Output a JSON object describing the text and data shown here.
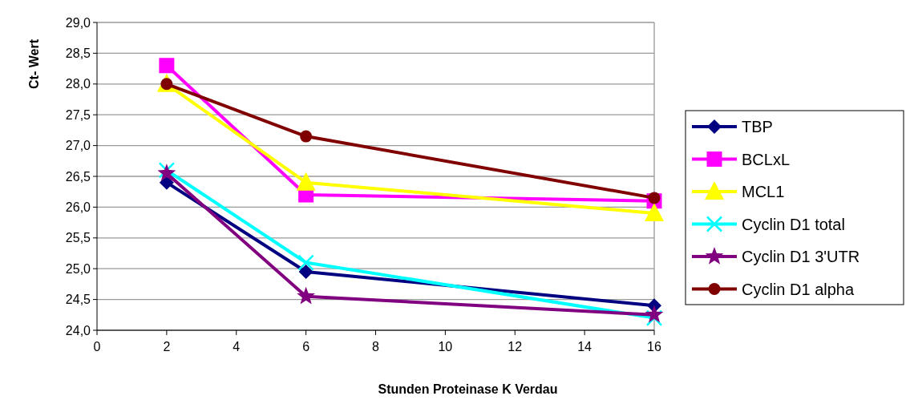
{
  "chart_data": {
    "type": "line",
    "xlabel": "Stunden Proteinase K Verdau",
    "ylabel": "Ct- Wert",
    "x": [
      2,
      6,
      16
    ],
    "xlim": [
      0,
      16
    ],
    "xticks": [
      0,
      2,
      4,
      6,
      8,
      10,
      12,
      14,
      16
    ],
    "ylim": [
      24,
      29
    ],
    "yticks": [
      {
        "value": 24,
        "label": "24,0"
      },
      {
        "value": 24.5,
        "label": "24,5"
      },
      {
        "value": 25,
        "label": "25,0"
      },
      {
        "value": 25.5,
        "label": "25,5"
      },
      {
        "value": 26,
        "label": "26,0"
      },
      {
        "value": 26.5,
        "label": "26,5"
      },
      {
        "value": 27,
        "label": "27,0"
      },
      {
        "value": 27.5,
        "label": "27,5"
      },
      {
        "value": 28,
        "label": "28,0"
      },
      {
        "value": 28.5,
        "label": "28,5"
      },
      {
        "value": 29,
        "label": "29,0"
      }
    ],
    "grid": "y",
    "legend": "right",
    "series": [
      {
        "name": "TBP",
        "color": "#000080",
        "marker": "diamond",
        "values": [
          26.4,
          24.95,
          24.4
        ]
      },
      {
        "name": "BCLxL",
        "color": "#ff00ff",
        "marker": "square",
        "values": [
          28.3,
          26.2,
          26.1
        ]
      },
      {
        "name": "MCL1",
        "color": "#ffff00",
        "marker": "triangle",
        "values": [
          28.0,
          26.4,
          25.9
        ]
      },
      {
        "name": "Cyclin D1 total",
        "color": "#00ffff",
        "marker": "cross",
        "values": [
          26.6,
          25.1,
          24.2
        ]
      },
      {
        "name": "Cyclin D1 3'UTR",
        "color": "#800080",
        "marker": "star",
        "values": [
          26.55,
          24.55,
          24.25
        ]
      },
      {
        "name": "Cyclin D1 alpha",
        "color": "#800000",
        "marker": "circle",
        "values": [
          28.0,
          27.15,
          26.15
        ]
      }
    ]
  }
}
